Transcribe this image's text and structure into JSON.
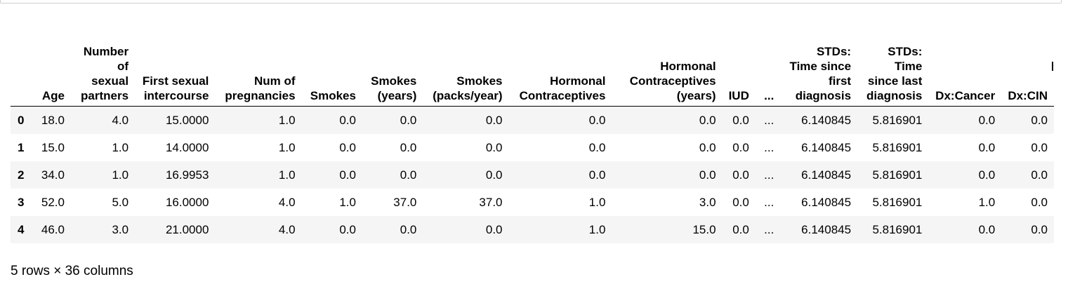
{
  "columns": [
    "Age",
    "Number of sexual partners",
    "First sexual intercourse",
    "Num of pregnancies",
    "Smokes",
    "Smokes (years)",
    "Smokes (packs/year)",
    "Hormonal Contraceptives",
    "Hormonal Contraceptives (years)",
    "IUD",
    "...",
    "STDs: Time since first diagnosis",
    "STDs: Time since last diagnosis",
    "Dx:Cancer",
    "Dx:CIN"
  ],
  "rows": [
    {
      "index": "0",
      "cells": [
        "18.0",
        "4.0",
        "15.0000",
        "1.0",
        "0.0",
        "0.0",
        "0.0",
        "0.0",
        "0.0",
        "0.0",
        "...",
        "6.140845",
        "5.816901",
        "0.0",
        "0.0"
      ]
    },
    {
      "index": "1",
      "cells": [
        "15.0",
        "1.0",
        "14.0000",
        "1.0",
        "0.0",
        "0.0",
        "0.0",
        "0.0",
        "0.0",
        "0.0",
        "...",
        "6.140845",
        "5.816901",
        "0.0",
        "0.0"
      ]
    },
    {
      "index": "2",
      "cells": [
        "34.0",
        "1.0",
        "16.9953",
        "1.0",
        "0.0",
        "0.0",
        "0.0",
        "0.0",
        "0.0",
        "0.0",
        "...",
        "6.140845",
        "5.816901",
        "0.0",
        "0.0"
      ]
    },
    {
      "index": "3",
      "cells": [
        "52.0",
        "5.0",
        "16.0000",
        "4.0",
        "1.0",
        "37.0",
        "37.0",
        "1.0",
        "3.0",
        "0.0",
        "...",
        "6.140845",
        "5.816901",
        "1.0",
        "0.0"
      ]
    },
    {
      "index": "4",
      "cells": [
        "46.0",
        "3.0",
        "21.0000",
        "4.0",
        "0.0",
        "0.0",
        "0.0",
        "1.0",
        "15.0",
        "0.0",
        "...",
        "6.140845",
        "5.816901",
        "0.0",
        "0.0"
      ]
    }
  ],
  "caption": "5 rows × 36 columns"
}
